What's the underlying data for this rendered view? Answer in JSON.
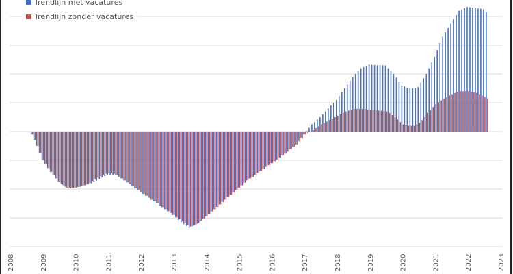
{
  "chart_data": {
    "type": "bar",
    "title": "",
    "xlabel": "",
    "ylabel": "",
    "x_ticks": [
      "2008",
      "2009",
      "2010",
      "2011",
      "2012",
      "2013",
      "2014",
      "2015",
      "2016",
      "2017",
      "2018",
      "2019",
      "2020",
      "2021",
      "2022",
      "2023"
    ],
    "xlim": [
      2008,
      2023
    ],
    "ylim": [
      -4,
      4
    ],
    "y_tick_labels_shown": false,
    "grid": "horizontal",
    "legend_position": "top-left",
    "x_first": "2008-08",
    "x_interval": "month",
    "series": [
      {
        "name": "Trendlijn met vacatures",
        "color": "#4472C4",
        "values": [
          0,
          -0.1,
          -0.3,
          -0.5,
          -0.75,
          -1.0,
          -1.13,
          -1.27,
          -1.4,
          -1.52,
          -1.63,
          -1.75,
          -1.82,
          -1.88,
          -1.95,
          -1.95,
          -1.95,
          -1.95,
          -1.93,
          -1.92,
          -1.9,
          -1.87,
          -1.83,
          -1.8,
          -1.75,
          -1.7,
          -1.65,
          -1.6,
          -1.55,
          -1.5,
          -1.5,
          -1.5,
          -1.5,
          -1.57,
          -1.63,
          -1.7,
          -1.77,
          -1.83,
          -1.9,
          -1.97,
          -2.03,
          -2.1,
          -2.17,
          -2.23,
          -2.3,
          -2.37,
          -2.43,
          -2.5,
          -2.57,
          -2.63,
          -2.7,
          -2.77,
          -2.83,
          -2.9,
          -2.98,
          -3.07,
          -3.15,
          -3.22,
          -3.28,
          -3.35,
          -3.3,
          -3.25,
          -3.2,
          -3.12,
          -3.03,
          -2.95,
          -2.87,
          -2.78,
          -2.7,
          -2.62,
          -2.53,
          -2.45,
          -2.37,
          -2.28,
          -2.2,
          -2.12,
          -2.03,
          -1.95,
          -1.87,
          -1.78,
          -1.7,
          -1.63,
          -1.57,
          -1.5,
          -1.43,
          -1.37,
          -1.3,
          -1.23,
          -1.17,
          -1.1,
          -1.03,
          -0.97,
          -0.9,
          -0.83,
          -0.77,
          -0.7,
          -0.62,
          -0.53,
          -0.45,
          -0.33,
          -0.22,
          -0.1,
          0.02,
          0.13,
          0.25,
          0.33,
          0.42,
          0.5,
          0.6,
          0.7,
          0.8,
          0.9,
          1.0,
          1.1,
          1.23,
          1.37,
          1.5,
          1.63,
          1.77,
          1.9,
          2.0,
          2.1,
          2.2,
          2.24,
          2.29,
          2.33,
          2.32,
          2.31,
          2.3,
          2.3,
          2.3,
          2.3,
          2.2,
          2.1,
          2.0,
          1.87,
          1.73,
          1.6,
          1.57,
          1.53,
          1.5,
          1.5,
          1.52,
          1.55,
          1.7,
          1.85,
          2.0,
          2.2,
          2.4,
          2.6,
          2.83,
          3.07,
          3.3,
          3.45,
          3.6,
          3.75,
          3.9,
          4.05,
          4.2,
          4.24,
          4.29,
          4.33,
          4.32,
          4.31,
          4.3,
          4.28,
          4.27,
          4.25,
          4.15
        ]
      },
      {
        "name": "Trendlijn zonder vacatures",
        "color": "#C0504D",
        "values": [
          0,
          -0.1,
          -0.3,
          -0.5,
          -0.75,
          -1.0,
          -1.13,
          -1.27,
          -1.4,
          -1.52,
          -1.63,
          -1.75,
          -1.85,
          -1.92,
          -1.97,
          -1.97,
          -1.96,
          -1.95,
          -1.93,
          -1.9,
          -1.87,
          -1.83,
          -1.78,
          -1.72,
          -1.66,
          -1.6,
          -1.55,
          -1.5,
          -1.47,
          -1.45,
          -1.45,
          -1.47,
          -1.5,
          -1.57,
          -1.63,
          -1.7,
          -1.77,
          -1.83,
          -1.9,
          -1.97,
          -2.03,
          -2.1,
          -2.17,
          -2.23,
          -2.3,
          -2.37,
          -2.43,
          -2.5,
          -2.57,
          -2.63,
          -2.7,
          -2.77,
          -2.83,
          -2.9,
          -2.98,
          -3.05,
          -3.12,
          -3.18,
          -3.24,
          -3.3,
          -3.27,
          -3.23,
          -3.18,
          -3.1,
          -3.02,
          -2.95,
          -2.87,
          -2.78,
          -2.7,
          -2.62,
          -2.53,
          -2.45,
          -2.37,
          -2.28,
          -2.2,
          -2.12,
          -2.03,
          -1.95,
          -1.87,
          -1.78,
          -1.7,
          -1.63,
          -1.57,
          -1.5,
          -1.43,
          -1.37,
          -1.3,
          -1.23,
          -1.17,
          -1.1,
          -1.03,
          -0.97,
          -0.9,
          -0.83,
          -0.77,
          -0.7,
          -0.62,
          -0.53,
          -0.45,
          -0.35,
          -0.25,
          -0.1,
          -0.05,
          0,
          0.05,
          0.12,
          0.18,
          0.25,
          0.3,
          0.35,
          0.4,
          0.45,
          0.5,
          0.55,
          0.6,
          0.65,
          0.7,
          0.73,
          0.76,
          0.78,
          0.79,
          0.79,
          0.79,
          0.78,
          0.77,
          0.76,
          0.75,
          0.74,
          0.73,
          0.72,
          0.71,
          0.7,
          0.64,
          0.57,
          0.5,
          0.42,
          0.33,
          0.25,
          0.22,
          0.2,
          0.2,
          0.2,
          0.25,
          0.3,
          0.4,
          0.5,
          0.65,
          0.75,
          0.85,
          0.95,
          1.02,
          1.08,
          1.15,
          1.2,
          1.25,
          1.3,
          1.34,
          1.37,
          1.4,
          1.4,
          1.4,
          1.4,
          1.38,
          1.36,
          1.34,
          1.3,
          1.25,
          1.2,
          1.15
        ]
      }
    ]
  }
}
